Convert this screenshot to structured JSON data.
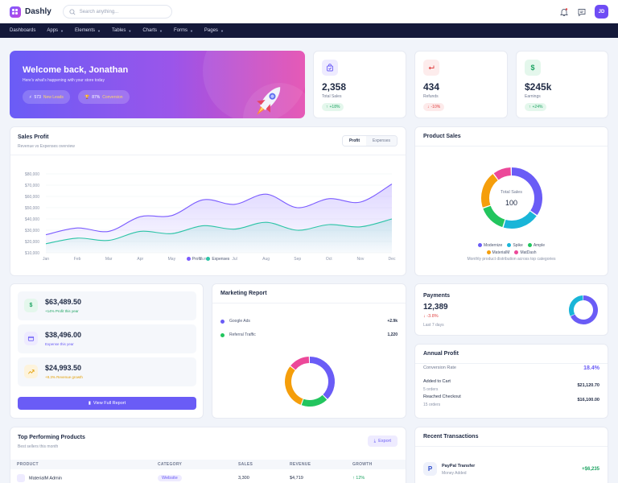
{
  "app": {
    "name": "Dashly"
  },
  "header": {
    "search_placeholder": "Search anything...",
    "avatar_initials": "JD"
  },
  "nav": [
    "Dashboards",
    "Apps",
    "Elements",
    "Tables",
    "Charts",
    "Forms",
    "Pages"
  ],
  "welcome": {
    "title": "Welcome back, Jonathan",
    "subtitle": "Here's what's happening with your store today",
    "leads_value": "573",
    "leads_label": "New Leads",
    "conversion_value": "87%",
    "conversion_label": "Conversion"
  },
  "stats": [
    {
      "value": "2,358",
      "label": "Total Sales",
      "change": "+18%",
      "trend": "up",
      "icon": "bag-check-icon",
      "color": "#6a5cf6",
      "bg": "#eeebff"
    },
    {
      "value": "434",
      "label": "Refunds",
      "change": "-10%",
      "trend": "down",
      "icon": "return-icon",
      "color": "#e04545",
      "bg": "#fdecec"
    },
    {
      "value": "$245k",
      "label": "Earnings",
      "change": "+24%",
      "trend": "up",
      "icon": "dollar-icon",
      "color": "#1fa463",
      "bg": "#e4f7ec"
    }
  ],
  "sales_profit": {
    "title": "Sales Profit",
    "subtitle": "Revenue vs Expenses overview",
    "tabs": [
      "Profit",
      "Expenses"
    ],
    "active_tab": "Profit",
    "legend": [
      "Profit",
      "Expenses"
    ]
  },
  "chart_data": [
    {
      "type": "area",
      "categories": [
        "Jan",
        "Feb",
        "Mar",
        "Apr",
        "May",
        "Jun",
        "Jul",
        "Aug",
        "Sep",
        "Oct",
        "Nov",
        "Dec"
      ],
      "series": [
        {
          "name": "Profit",
          "color": "#7b5cff",
          "values": [
            26000,
            32000,
            29000,
            42000,
            43000,
            57000,
            53000,
            62000,
            50000,
            58000,
            55000,
            71000
          ]
        },
        {
          "name": "Expenses",
          "color": "#2cc4a6",
          "values": [
            18000,
            23000,
            21000,
            29000,
            27000,
            34000,
            31000,
            37000,
            30000,
            35000,
            33000,
            40000
          ]
        }
      ],
      "yticks": [
        "$80,000",
        "$70,000",
        "$60,000",
        "$50,000",
        "$40,000",
        "$30,000",
        "$20,000",
        "$10,000"
      ],
      "ylim": [
        10000,
        80000
      ],
      "grid": true,
      "legend": "bottom"
    },
    {
      "type": "pie",
      "title": "Product Sales",
      "center_label": "Total Sales",
      "center_value": "100",
      "series": [
        {
          "name": "Modernize",
          "value": 35,
          "color": "#6a5cf6"
        },
        {
          "name": "Spike",
          "value": 20,
          "color": "#19b5d8"
        },
        {
          "name": "Ample",
          "value": 15,
          "color": "#22c55e"
        },
        {
          "name": "MaterialM",
          "value": 20,
          "color": "#f59e0b"
        },
        {
          "name": "MatDash",
          "value": 10,
          "color": "#ec4899"
        }
      ]
    },
    {
      "type": "pie",
      "title": "Marketing Report",
      "series": [
        {
          "value": 38,
          "color": "#6a5cf6"
        },
        {
          "value": 18,
          "color": "#22c55e"
        },
        {
          "value": 30,
          "color": "#f59e0b"
        },
        {
          "value": 14,
          "color": "#ec4899"
        }
      ]
    },
    {
      "type": "pie",
      "title": "Payments",
      "series": [
        {
          "value": 68,
          "color": "#6a5cf6"
        },
        {
          "value": 32,
          "color": "#19b5d8"
        }
      ]
    }
  ],
  "product_sales": {
    "title": "Product Sales",
    "legend_row1": [
      "Modernize",
      "Spike",
      "Ample"
    ],
    "legend_row2": [
      "MaterialM",
      "MatDash"
    ],
    "caption": "Monthly product distribution across top categories"
  },
  "finance": [
    {
      "value": "$63,489.50",
      "sub": "+14% Profit this year",
      "icon": "$",
      "color": "#1fa463",
      "bg": "#e4f7ec"
    },
    {
      "value": "$38,496.00",
      "sub": "Expense this year",
      "icon": "wallet-icon",
      "color": "#6a5cf6",
      "bg": "#eeebff"
    },
    {
      "value": "$24,993.50",
      "sub": "+8.3% Revenue growth",
      "icon": "chart-icon",
      "color": "#e3a008",
      "bg": "#fdf3dc"
    }
  ],
  "finance_button": "View Full Report",
  "marketing": {
    "title": "Marketing Report",
    "rows": [
      {
        "label": "Google Ads",
        "value": "+2.9k",
        "color": "#6a5cf6"
      },
      {
        "label": "Referral Traffic",
        "value": "1,220",
        "color": "#22c55e"
      }
    ]
  },
  "payments": {
    "title": "Payments",
    "value": "12,389",
    "change": "-3.8%",
    "period": "Last 7 days"
  },
  "annual": {
    "title": "Annual Profit",
    "conversion_label": "Conversion Rate",
    "conversion_value": "18.4%",
    "rows": [
      {
        "label": "Added to Cart",
        "sub": "5 orders",
        "value": "$21,120.70"
      },
      {
        "label": "Reached Checkout",
        "sub": "15 orders",
        "value": "$16,100.00"
      }
    ]
  },
  "top_products": {
    "title": "Top Performing Products",
    "subtitle": "Best sellers this month",
    "export": "Export",
    "columns": [
      "PRODUCT",
      "CATEGORY",
      "SALES",
      "REVENUE",
      "GROWTH"
    ],
    "rows": [
      {
        "product": "MaterialM Admin",
        "category": "Website",
        "sales": "3,300",
        "revenue": "$4,719",
        "growth": "12%"
      }
    ]
  },
  "transactions": {
    "title": "Recent Transactions",
    "rows": [
      {
        "name": "PayPal Transfer",
        "sub": "Money Added",
        "amount": "+$6,235"
      }
    ]
  }
}
